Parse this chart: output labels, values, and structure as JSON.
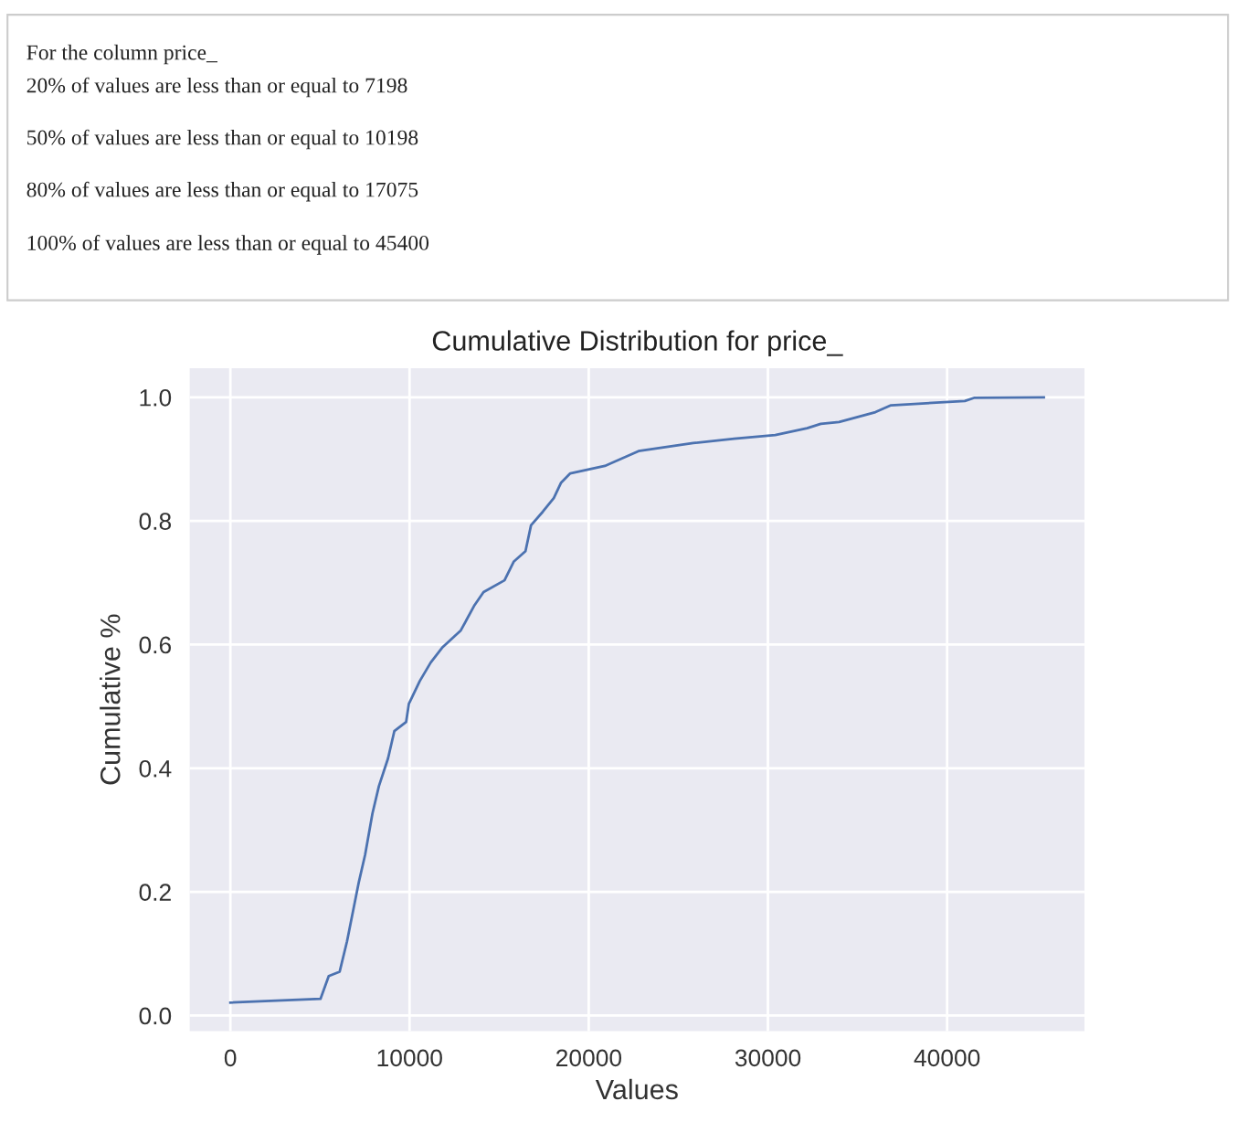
{
  "chart_data": {
    "type": "line",
    "title": "Cumulative Distribution for price_",
    "xlabel": "Values",
    "ylabel": "Cumulative %",
    "annotations": [
      "For the column price_",
      "20% of values are less than or equal to 7198",
      "50% of values are less than or equal to 10198",
      "80% of values are less than or equal to 17075",
      "100% of values are less than or equal to 45400"
    ],
    "x": [
      0,
      5030,
      5490,
      6100,
      6510,
      7170,
      7520,
      7930,
      8290,
      8800,
      9150,
      9810,
      9960,
      10570,
      11180,
      11850,
      12860,
      13630,
      14130,
      15300,
      15810,
      16470,
      16780,
      17440,
      18050,
      18460,
      18970,
      20900,
      22780,
      25830,
      28120,
      30410,
      32190,
      32950,
      33970,
      36000,
      36870,
      40990,
      41500,
      45400
    ],
    "series": [
      {
        "color": "#4c72b0",
        "values": [
          0.021,
          0.027,
          0.064,
          0.071,
          0.12,
          0.216,
          0.26,
          0.327,
          0.371,
          0.416,
          0.46,
          0.475,
          0.504,
          0.541,
          0.571,
          0.596,
          0.623,
          0.664,
          0.685,
          0.704,
          0.734,
          0.751,
          0.793,
          0.815,
          0.837,
          0.862,
          0.877,
          0.889,
          0.913,
          0.926,
          0.933,
          0.939,
          0.95,
          0.957,
          0.96,
          0.976,
          0.987,
          0.994,
          0.999,
          1.0
        ]
      }
    ],
    "xlim": [
      -2270,
      47670
    ],
    "ylim": [
      -0.025,
      1.047
    ],
    "xticks": [
      0,
      10000,
      20000,
      30000,
      40000
    ],
    "yticks": [
      {
        "value": 0,
        "label": "0.0"
      },
      {
        "value": 0.2,
        "label": "0.2"
      },
      {
        "value": 0.4,
        "label": "0.4"
      },
      {
        "value": 0.6,
        "label": "0.6"
      },
      {
        "value": 0.8,
        "label": "0.8"
      },
      {
        "value": 1.0,
        "label": "1.0"
      }
    ],
    "grid": true,
    "legend": false,
    "marker": "none",
    "line_style": "solid"
  }
}
